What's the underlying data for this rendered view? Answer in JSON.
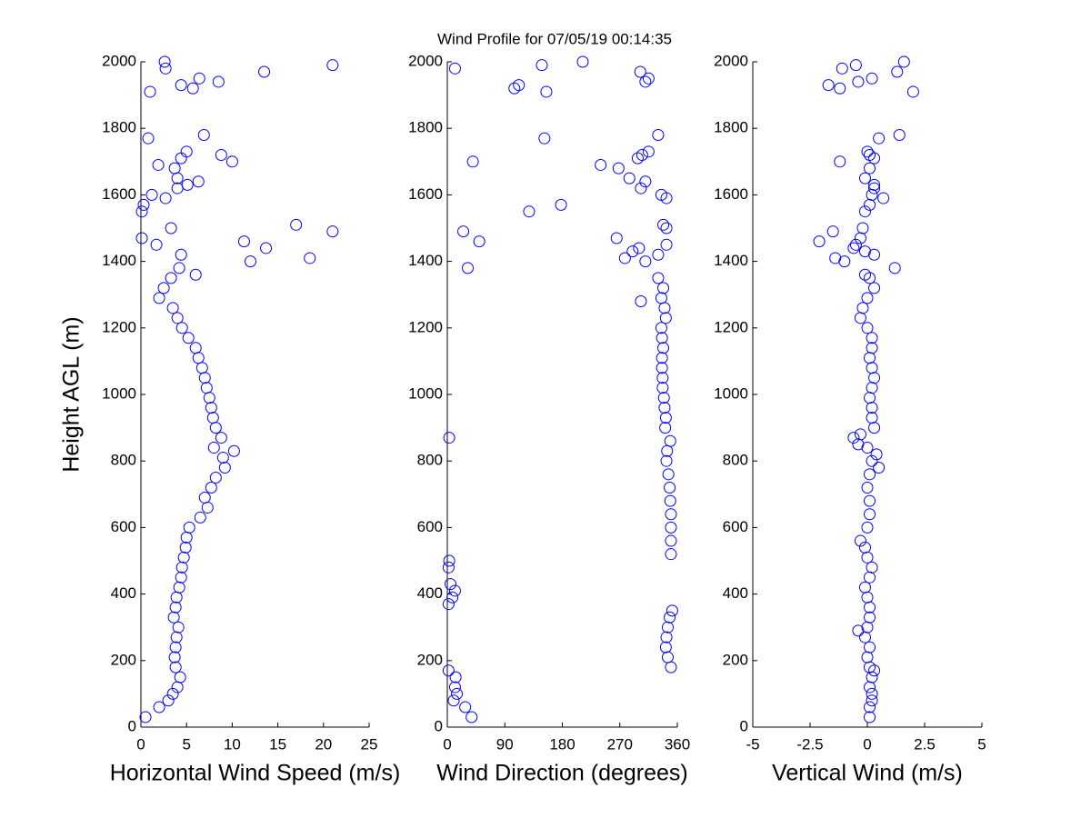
{
  "chart_data": [
    {
      "type": "scatter",
      "title": "Wind Profile for  07/05/19 00:14:35",
      "ylabel": "Height AGL (m)",
      "xlabel": "Horizontal Wind Speed (m/s)",
      "color": "#0000ff",
      "xlim": [
        0,
        25
      ],
      "xticks": [
        0,
        5,
        10,
        15,
        20,
        25
      ],
      "ylim": [
        0,
        2000
      ],
      "yticks": [
        0,
        200,
        400,
        600,
        800,
        1000,
        1200,
        1400,
        1600,
        1800,
        2000
      ],
      "x": [
        0.5,
        2,
        3,
        3.5,
        4,
        4.3,
        3.8,
        3.7,
        3.8,
        3.9,
        4.1,
        3.6,
        3.8,
        3.9,
        4.2,
        4.4,
        4.5,
        4.7,
        4.9,
        5,
        5.3,
        6.5,
        7.3,
        7,
        7.7,
        8.2,
        9.2,
        9,
        10.2,
        8,
        8.8,
        8.2,
        7.9,
        7.7,
        7.5,
        7.2,
        7,
        6.7,
        6.3,
        6,
        5.2,
        4.5,
        4,
        3.5,
        2,
        2.5,
        3.3,
        6,
        4.2,
        12,
        18.5,
        4.4,
        13.7,
        1.7,
        11.3,
        0.1,
        21,
        3.3,
        17,
        0.1,
        0.3,
        2.7,
        1.2,
        4,
        5.1,
        6.3,
        4,
        3.7,
        1.9,
        10,
        4.4,
        8.8,
        5,
        0.8,
        6.9,
        1,
        5.7,
        4.4,
        8.5,
        6.4,
        13.5,
        2.7,
        21,
        2.6
      ],
      "values": [
        30,
        60,
        80,
        100,
        120,
        150,
        180,
        210,
        240,
        270,
        300,
        330,
        360,
        390,
        420,
        450,
        480,
        510,
        540,
        570,
        600,
        630,
        660,
        690,
        720,
        750,
        780,
        810,
        830,
        840,
        870,
        900,
        930,
        960,
        990,
        1020,
        1050,
        1080,
        1110,
        1140,
        1170,
        1200,
        1230,
        1260,
        1290,
        1320,
        1350,
        1360,
        1380,
        1400,
        1410,
        1420,
        1440,
        1450,
        1460,
        1470,
        1490,
        1500,
        1510,
        1550,
        1570,
        1590,
        1600,
        1620,
        1630,
        1640,
        1650,
        1680,
        1690,
        1700,
        1710,
        1720,
        1730,
        1770,
        1780,
        1910,
        1920,
        1930,
        1940,
        1950,
        1970,
        1980,
        1990,
        2000
      ]
    },
    {
      "type": "scatter",
      "xlabel": "Wind Direction (degrees)",
      "color": "#0000ff",
      "xlim": [
        0,
        360
      ],
      "xticks": [
        0,
        90,
        180,
        270,
        360
      ],
      "ylim": [
        0,
        2000
      ],
      "yticks": [
        0,
        200,
        400,
        600,
        800,
        1000,
        1200,
        1400,
        1600,
        1800,
        2000
      ],
      "x": [
        38,
        28,
        10,
        15,
        12,
        13,
        2,
        350,
        345,
        342,
        343,
        345,
        348,
        352,
        2,
        8,
        12,
        5,
        2,
        3,
        350,
        350,
        350,
        350,
        349,
        348,
        346,
        343,
        344,
        349,
        3,
        341,
        342,
        340,
        339,
        337,
        337,
        336,
        336,
        338,
        336,
        335,
        342,
        340,
        335,
        338,
        330,
        303,
        32,
        310,
        278,
        330,
        290,
        300,
        343,
        50,
        265,
        25,
        343,
        338,
        128,
        178,
        343,
        335,
        303,
        310,
        285,
        268,
        240,
        40,
        298,
        305,
        315,
        152,
        330,
        155,
        105,
        112,
        310,
        315,
        302,
        12,
        148,
        212
      ],
      "values": [
        30,
        60,
        80,
        100,
        120,
        150,
        170,
        180,
        210,
        240,
        270,
        300,
        330,
        350,
        370,
        390,
        410,
        430,
        480,
        500,
        520,
        560,
        600,
        640,
        680,
        720,
        760,
        800,
        830,
        860,
        870,
        900,
        930,
        960,
        990,
        1020,
        1050,
        1080,
        1110,
        1140,
        1170,
        1200,
        1230,
        1260,
        1290,
        1320,
        1350,
        1280,
        1380,
        1400,
        1410,
        1420,
        1430,
        1440,
        1450,
        1460,
        1470,
        1490,
        1500,
        1510,
        1550,
        1570,
        1590,
        1600,
        1620,
        1640,
        1650,
        1680,
        1690,
        1700,
        1710,
        1720,
        1730,
        1770,
        1780,
        1910,
        1920,
        1930,
        1940,
        1950,
        1970,
        1980,
        1990,
        2000
      ]
    },
    {
      "type": "scatter",
      "xlabel": "Vertical Wind (m/s)",
      "color": "#0000ff",
      "xlim": [
        -5,
        5
      ],
      "xticks": [
        -5,
        -2.5,
        0,
        2.5,
        5
      ],
      "ylim": [
        0,
        2000
      ],
      "yticks": [
        0,
        200,
        400,
        600,
        800,
        1000,
        1200,
        1400,
        1600,
        1800,
        2000
      ],
      "x": [
        0.1,
        0.1,
        0.2,
        0.2,
        0.1,
        0.2,
        0.3,
        0.1,
        0,
        0.1,
        -0.1,
        -0.4,
        0,
        0.1,
        0.1,
        0,
        -0.1,
        0.1,
        0.2,
        0,
        -0.1,
        -0.3,
        0,
        0.1,
        0.1,
        0,
        0.1,
        0.5,
        0.2,
        0.4,
        0,
        -0.4,
        -0.6,
        -0.3,
        0.3,
        0.2,
        0.2,
        0.1,
        0.2,
        0.3,
        0.2,
        0.1,
        0.2,
        0.2,
        0,
        -0.3,
        -0.2,
        0,
        0.3,
        0.1,
        -0.1,
        1.2,
        -1,
        -1.4,
        0.3,
        -0.1,
        -0.6,
        -0.5,
        -2.1,
        -0.3,
        -1.5,
        -0.2,
        -0.1,
        0.1,
        0.7,
        0.2,
        0.3,
        0.3,
        -0.1,
        0.1,
        -1.2,
        0.3,
        0.1,
        0,
        0.5,
        1.4,
        2,
        -1.2,
        -1.7,
        -0.4,
        0.2,
        1.3,
        -1.1,
        -0.5,
        1.6
      ],
      "values": [
        30,
        60,
        80,
        100,
        120,
        150,
        170,
        180,
        210,
        240,
        270,
        290,
        300,
        330,
        360,
        390,
        420,
        450,
        480,
        510,
        540,
        560,
        600,
        640,
        680,
        720,
        760,
        780,
        800,
        820,
        840,
        850,
        870,
        880,
        900,
        930,
        960,
        990,
        1020,
        1050,
        1080,
        1110,
        1140,
        1170,
        1200,
        1230,
        1260,
        1290,
        1320,
        1350,
        1360,
        1380,
        1400,
        1410,
        1420,
        1430,
        1440,
        1450,
        1460,
        1470,
        1490,
        1500,
        1550,
        1570,
        1590,
        1600,
        1620,
        1630,
        1650,
        1680,
        1700,
        1710,
        1720,
        1730,
        1770,
        1780,
        1910,
        1920,
        1930,
        1940,
        1950,
        1970,
        1980,
        1990,
        2000
      ]
    }
  ]
}
